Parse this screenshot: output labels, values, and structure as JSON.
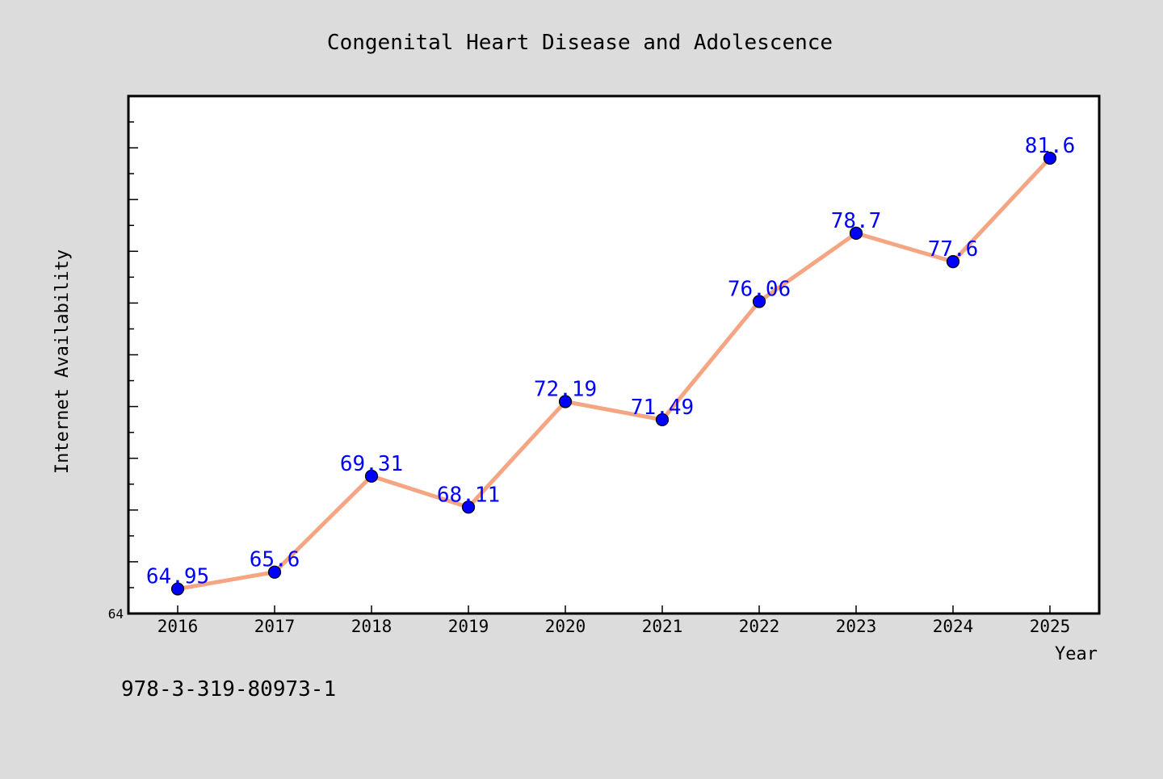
{
  "chart_data": {
    "type": "line",
    "title": "Congenital Heart Disease and Adolescence",
    "xlabel": "Year",
    "ylabel": "Internet Availability",
    "categories": [
      "2016",
      "2017",
      "2018",
      "2019",
      "2020",
      "2021",
      "2022",
      "2023",
      "2024",
      "2025"
    ],
    "series": [
      {
        "values": [
          64.95,
          65.6,
          69.31,
          68.11,
          72.19,
          71.49,
          76.06,
          78.7,
          77.6,
          81.6
        ],
        "labels": [
          "64.95",
          "65.6",
          "69.31",
          "68.11",
          "72.19",
          "71.49",
          "76.06",
          "78.7",
          "77.6",
          "81.6"
        ]
      }
    ],
    "ylim": [
      64,
      84
    ],
    "y_tick_labels": [
      "64"
    ],
    "line_color": "#f4a582",
    "marker_color": "#0000ff",
    "label_color": "#0000ff",
    "plot_background": "#ffffff",
    "page_background": "#dcdcdc",
    "grid": false,
    "legend": "none"
  },
  "footer_text": "978-3-319-80973-1"
}
